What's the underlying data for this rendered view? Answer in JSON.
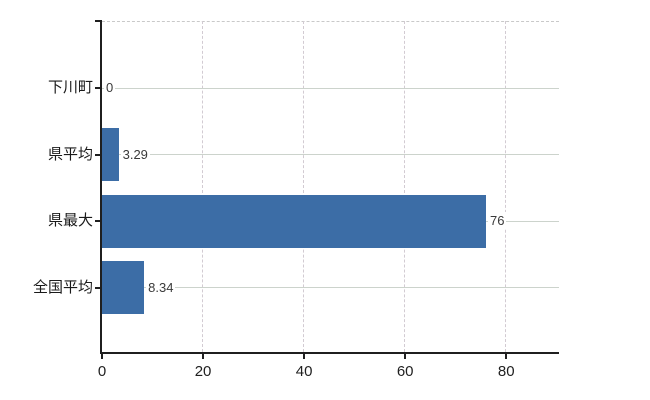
{
  "chart_data": {
    "type": "bar",
    "orientation": "horizontal",
    "title": "",
    "xlabel": "",
    "ylabel": "",
    "categories": [
      "下川町",
      "県平均",
      "県最大",
      "全国平均"
    ],
    "values": [
      0,
      3.29,
      76,
      8.34
    ],
    "value_labels": [
      "0",
      "3.29",
      "76",
      "8.34"
    ],
    "x_ticks": [
      0,
      20,
      40,
      60,
      80
    ],
    "x_tick_labels": [
      "0",
      "20",
      "40",
      "60",
      "80"
    ],
    "xlim": [
      0,
      90.5
    ],
    "grid": "on",
    "legend": "none",
    "colors": {
      "bar": "#3c6da6",
      "axis": "#1f1f1f",
      "h_grid": "#ccd3cc",
      "v_grid": "#d2cbd2",
      "top_border": "#c9c9c9",
      "category_label": "#1a1a1a",
      "value_label": "#3a3a3a",
      "tick_label": "#1f1f1f",
      "background": "#ffffff"
    }
  }
}
